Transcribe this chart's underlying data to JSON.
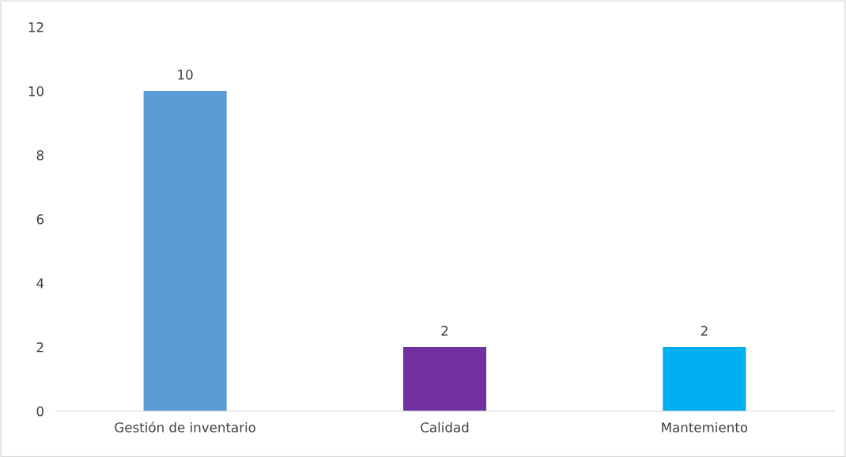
{
  "chart_data": {
    "type": "bar",
    "categories": [
      "Gestión de inventario",
      "Calidad",
      "Mantemiento"
    ],
    "values": [
      10,
      2,
      2
    ],
    "colors": [
      "#5b9bd5",
      "#7030a0",
      "#00b0f0"
    ],
    "ylim": [
      0,
      12
    ],
    "yticks": [
      0,
      2,
      4,
      6,
      8,
      10,
      12
    ],
    "data_labels": true,
    "grid": false,
    "legend": false
  }
}
